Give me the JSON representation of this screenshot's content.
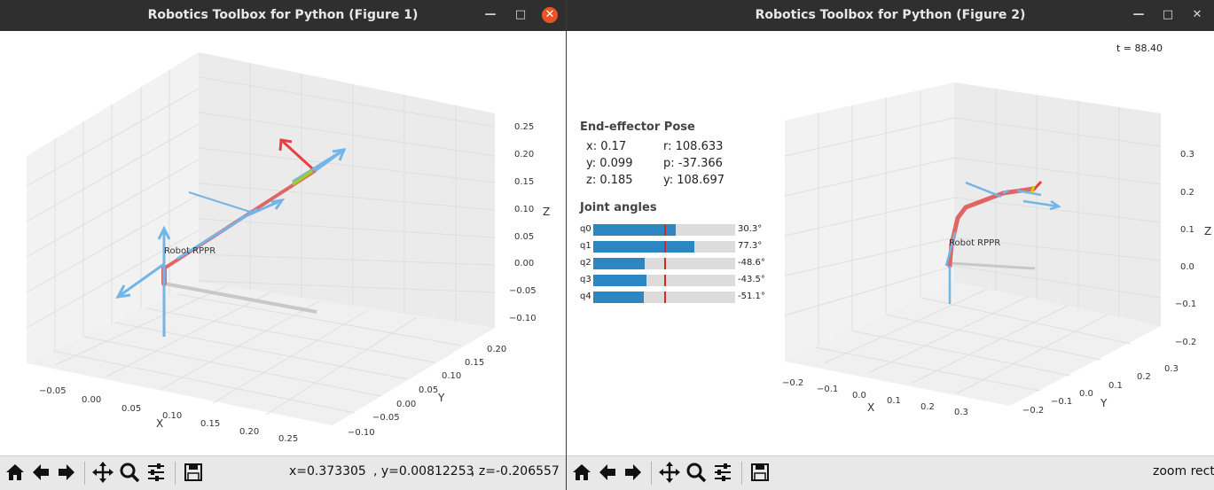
{
  "window1": {
    "title": "Robotics Toolbox for Python (Figure 1)",
    "controls": [
      "minimize-icon",
      "maximize-icon",
      "close-icon"
    ],
    "status": {
      "x": "x=0.373305",
      "y": ", y=0.00812253",
      "z": ", z=-0.206557"
    },
    "robot_label": "Robot RPPR",
    "axes": {
      "x_label": "X",
      "y_label": "Y",
      "z_label": "Z",
      "x_ticks": [
        "−0.05",
        "0.00",
        "0.05",
        "0.10",
        "0.15",
        "0.20",
        "0.25"
      ],
      "y_ticks": [
        "−0.10",
        "−0.05",
        "0.00",
        "0.05",
        "0.10",
        "0.15",
        "0.20"
      ],
      "z_ticks": [
        "0.25",
        "0.20",
        "0.15",
        "0.10",
        "0.05",
        "0.00",
        "−0.05",
        "−0.10"
      ]
    }
  },
  "window2": {
    "title": "Robotics Toolbox for Python (Figure 2)",
    "controls": [
      "minimize-icon",
      "maximize-icon",
      "close-icon"
    ],
    "time_label": "t = 88.40",
    "status": "zoom rect",
    "robot_label": "Robot RPPR",
    "pose": {
      "heading": "End-effector Pose",
      "x": "x: 0.17",
      "y": "y: 0.099",
      "z": "z: 0.185",
      "r": "r: 108.633",
      "p": "p: -37.366",
      "yaw": "y: 108.697"
    },
    "joints": {
      "heading": "Joint angles",
      "items": [
        {
          "name": "q0",
          "value": "30.3°",
          "fraction": 0.58
        },
        {
          "name": "q1",
          "value": "77.3°",
          "fraction": 0.71
        },
        {
          "name": "q2",
          "value": "-48.6°",
          "fraction": 0.36
        },
        {
          "name": "q3",
          "value": "-43.5°",
          "fraction": 0.375
        },
        {
          "name": "q4",
          "value": "-51.1°",
          "fraction": 0.355
        }
      ]
    },
    "axes": {
      "x_label": "X",
      "y_label": "Y",
      "z_label": "Z",
      "x_ticks": [
        "−0.2",
        "−0.1",
        "0.0",
        "0.1",
        "0.2",
        "0.3"
      ],
      "y_ticks": [
        "−0.2",
        "−0.1",
        "0.0",
        "0.1",
        "0.2",
        "0.3"
      ],
      "z_ticks": [
        "0.3",
        "0.2",
        "0.1",
        "0.0",
        "−0.1",
        "−0.2"
      ]
    }
  },
  "toolbar": {
    "buttons": [
      "home-icon",
      "back-icon",
      "forward-icon",
      "pan-icon",
      "zoom-icon",
      "subplots-icon",
      "save-icon"
    ]
  },
  "colors": {
    "titlebar": "#2f2f2f",
    "close": "#e95420",
    "link": "#e06666",
    "frame": "#74b5e8",
    "joint_bar": "#2c86c2",
    "marker": "#d62728"
  }
}
